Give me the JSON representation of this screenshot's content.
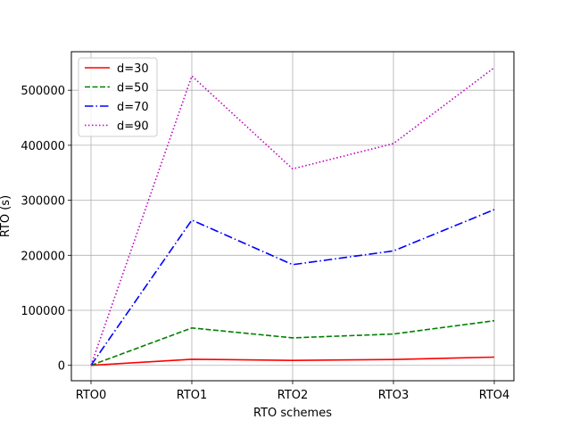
{
  "chart_data": {
    "type": "line",
    "categories": [
      "RTO0",
      "RTO1",
      "RTO2",
      "RTO3",
      "RTO4"
    ],
    "xlabel": "RTO schemes",
    "ylabel": "RTO (s)",
    "ylim": [
      -28000,
      570000
    ],
    "yticks": [
      0,
      100000,
      200000,
      300000,
      400000,
      500000
    ],
    "grid": true,
    "legend_position": "top-left",
    "series": [
      {
        "name": "d=30",
        "color": "#ff0000",
        "style": "solid",
        "values": [
          0,
          11000,
          9000,
          10500,
          15000
        ]
      },
      {
        "name": "d=50",
        "color": "#008000",
        "style": "dashed",
        "values": [
          0,
          68000,
          50000,
          57000,
          81000
        ]
      },
      {
        "name": "d=70",
        "color": "#0000ff",
        "style": "dashdot",
        "values": [
          0,
          264000,
          183000,
          208000,
          283000
        ]
      },
      {
        "name": "d=90",
        "color": "#bf00bf",
        "style": "dotted",
        "values": [
          0,
          526000,
          357000,
          403000,
          541000
        ]
      }
    ]
  }
}
